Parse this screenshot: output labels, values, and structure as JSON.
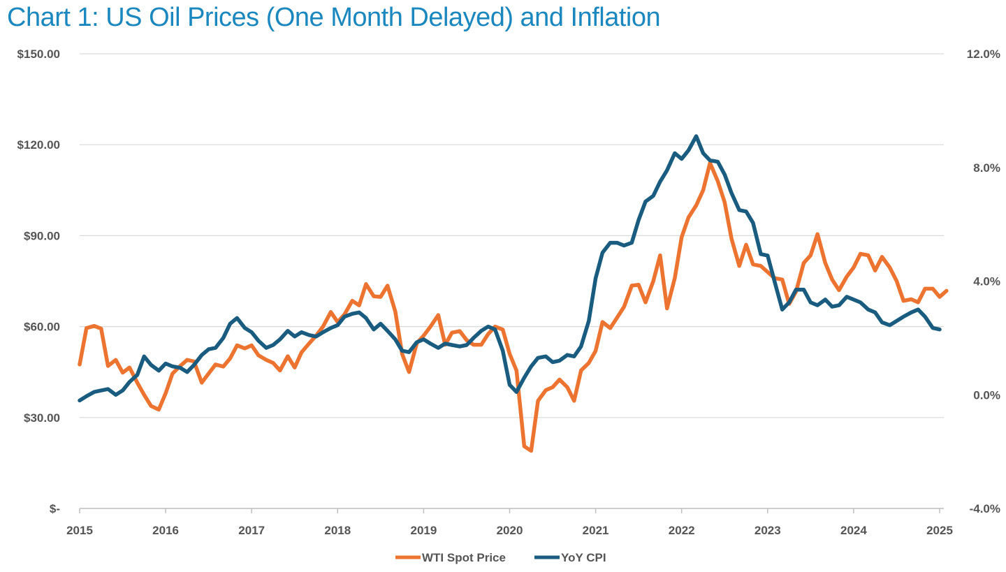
{
  "title": "Chart 1: US Oil Prices (One Month Delayed) and Inflation",
  "chart_data": {
    "type": "line",
    "title": "Chart 1: US Oil Prices (One Month Delayed) and Inflation",
    "xlabel": "",
    "ylabel": "",
    "x_ticks": [
      "2015",
      "2016",
      "2017",
      "2018",
      "2019",
      "2020",
      "2021",
      "2022",
      "2023",
      "2024",
      "2025"
    ],
    "y_left_ticks": [
      "$-",
      "$30.00",
      "$60.00",
      "$90.00",
      "$120.00",
      "$150.00"
    ],
    "y_right_ticks": [
      "-4.0%",
      "0.0%",
      "4.0%",
      "8.0%",
      "12.0%"
    ],
    "ylim_left": [
      0,
      150
    ],
    "ylim_right": [
      -4,
      12
    ],
    "xlim": [
      2015.0,
      2025.0
    ],
    "grid": "horizontal",
    "legend_position": "bottom",
    "colors": {
      "wti": "#ed7430",
      "cpi": "#1a5c80",
      "title": "#1a87bf",
      "grid": "#d9d9d9",
      "axis_text": "#555555"
    },
    "series": [
      {
        "name": "WTI Spot Price",
        "axis": "left",
        "points": [
          [
            2015.0,
            47.5
          ],
          [
            2015.08,
            59.5
          ],
          [
            2015.17,
            60.2
          ],
          [
            2015.25,
            59.3
          ],
          [
            2015.33,
            47.0
          ],
          [
            2015.42,
            49.0
          ],
          [
            2015.5,
            44.8
          ],
          [
            2015.58,
            46.5
          ],
          [
            2015.67,
            41.5
          ],
          [
            2015.75,
            37.5
          ],
          [
            2015.83,
            33.8
          ],
          [
            2015.92,
            32.6
          ],
          [
            2016.0,
            38.0
          ],
          [
            2016.08,
            44.5
          ],
          [
            2016.17,
            47.0
          ],
          [
            2016.25,
            49.0
          ],
          [
            2016.33,
            48.5
          ],
          [
            2016.42,
            41.5
          ],
          [
            2016.5,
            44.5
          ],
          [
            2016.58,
            47.5
          ],
          [
            2016.67,
            46.8
          ],
          [
            2016.75,
            49.5
          ],
          [
            2016.83,
            53.8
          ],
          [
            2016.92,
            52.8
          ],
          [
            2017.0,
            53.8
          ],
          [
            2017.08,
            50.5
          ],
          [
            2017.17,
            49.0
          ],
          [
            2017.25,
            48.0
          ],
          [
            2017.33,
            45.5
          ],
          [
            2017.42,
            50.2
          ],
          [
            2017.5,
            46.5
          ],
          [
            2017.58,
            51.5
          ],
          [
            2017.67,
            54.5
          ],
          [
            2017.75,
            57.0
          ],
          [
            2017.83,
            60.0
          ],
          [
            2017.92,
            64.8
          ],
          [
            2018.0,
            61.5
          ],
          [
            2018.08,
            64.0
          ],
          [
            2018.17,
            68.5
          ],
          [
            2018.25,
            67.0
          ],
          [
            2018.33,
            74.0
          ],
          [
            2018.42,
            70.0
          ],
          [
            2018.5,
            69.8
          ],
          [
            2018.58,
            73.5
          ],
          [
            2018.67,
            65.0
          ],
          [
            2018.75,
            51.0
          ],
          [
            2018.83,
            45.0
          ],
          [
            2018.92,
            54.5
          ],
          [
            2019.0,
            57.0
          ],
          [
            2019.08,
            60.0
          ],
          [
            2019.17,
            63.8
          ],
          [
            2019.25,
            54.0
          ],
          [
            2019.33,
            58.0
          ],
          [
            2019.42,
            58.5
          ],
          [
            2019.5,
            55.5
          ],
          [
            2019.58,
            54.0
          ],
          [
            2019.67,
            54.0
          ],
          [
            2019.75,
            57.5
          ],
          [
            2019.83,
            60.0
          ],
          [
            2019.92,
            59.0
          ],
          [
            2020.0,
            51.0
          ],
          [
            2020.08,
            45.5
          ],
          [
            2020.17,
            20.5
          ],
          [
            2020.25,
            19.0
          ],
          [
            2020.33,
            35.5
          ],
          [
            2020.42,
            39.0
          ],
          [
            2020.5,
            40.0
          ],
          [
            2020.58,
            42.5
          ],
          [
            2020.67,
            40.0
          ],
          [
            2020.75,
            35.5
          ],
          [
            2020.83,
            45.5
          ],
          [
            2020.92,
            48.0
          ],
          [
            2021.0,
            52.0
          ],
          [
            2021.08,
            61.5
          ],
          [
            2021.17,
            59.5
          ],
          [
            2021.25,
            63.0
          ],
          [
            2021.33,
            66.5
          ],
          [
            2021.42,
            73.5
          ],
          [
            2021.5,
            73.8
          ],
          [
            2021.58,
            68.0
          ],
          [
            2021.67,
            75.0
          ],
          [
            2021.75,
            83.5
          ],
          [
            2021.83,
            66.0
          ],
          [
            2021.92,
            76.0
          ],
          [
            2022.0,
            89.5
          ],
          [
            2022.08,
            96.0
          ],
          [
            2022.17,
            100.0
          ],
          [
            2022.25,
            105.0
          ],
          [
            2022.33,
            114.0
          ],
          [
            2022.42,
            108.0
          ],
          [
            2022.5,
            101.0
          ],
          [
            2022.58,
            89.0
          ],
          [
            2022.67,
            80.0
          ],
          [
            2022.75,
            87.0
          ],
          [
            2022.83,
            80.5
          ],
          [
            2022.92,
            80.0
          ],
          [
            2023.0,
            78.0
          ],
          [
            2023.08,
            76.0
          ],
          [
            2023.17,
            75.5
          ],
          [
            2023.25,
            67.5
          ],
          [
            2023.33,
            71.5
          ],
          [
            2023.42,
            81.0
          ],
          [
            2023.5,
            83.5
          ],
          [
            2023.58,
            90.5
          ],
          [
            2023.67,
            81.0
          ],
          [
            2023.75,
            75.5
          ],
          [
            2023.83,
            72.0
          ],
          [
            2023.92,
            76.5
          ],
          [
            2024.0,
            79.5
          ],
          [
            2024.08,
            84.0
          ],
          [
            2024.17,
            83.5
          ],
          [
            2024.25,
            78.5
          ],
          [
            2024.33,
            83.0
          ],
          [
            2024.42,
            79.5
          ],
          [
            2024.5,
            75.0
          ],
          [
            2024.58,
            68.5
          ],
          [
            2024.67,
            69.0
          ],
          [
            2024.75,
            68.0
          ],
          [
            2024.83,
            72.5
          ],
          [
            2024.92,
            72.5
          ],
          [
            2025.0,
            69.8
          ],
          [
            2025.08,
            71.8
          ]
        ]
      },
      {
        "name": "YoY CPI",
        "axis": "right",
        "points": [
          [
            2015.0,
            -0.2
          ],
          [
            2015.08,
            -0.05
          ],
          [
            2015.17,
            0.1
          ],
          [
            2015.25,
            0.15
          ],
          [
            2015.33,
            0.2
          ],
          [
            2015.42,
            0.0
          ],
          [
            2015.5,
            0.15
          ],
          [
            2015.58,
            0.45
          ],
          [
            2015.67,
            0.7
          ],
          [
            2015.75,
            1.35
          ],
          [
            2015.83,
            1.05
          ],
          [
            2015.92,
            0.85
          ],
          [
            2016.0,
            1.1
          ],
          [
            2016.08,
            1.0
          ],
          [
            2016.17,
            0.95
          ],
          [
            2016.25,
            0.8
          ],
          [
            2016.33,
            1.05
          ],
          [
            2016.42,
            1.4
          ],
          [
            2016.5,
            1.6
          ],
          [
            2016.58,
            1.65
          ],
          [
            2016.67,
            2.0
          ],
          [
            2016.75,
            2.5
          ],
          [
            2016.83,
            2.7
          ],
          [
            2016.92,
            2.35
          ],
          [
            2017.0,
            2.2
          ],
          [
            2017.08,
            1.9
          ],
          [
            2017.17,
            1.65
          ],
          [
            2017.25,
            1.75
          ],
          [
            2017.33,
            1.95
          ],
          [
            2017.42,
            2.25
          ],
          [
            2017.5,
            2.05
          ],
          [
            2017.58,
            2.2
          ],
          [
            2017.67,
            2.1
          ],
          [
            2017.75,
            2.05
          ],
          [
            2017.83,
            2.2
          ],
          [
            2017.92,
            2.35
          ],
          [
            2018.0,
            2.45
          ],
          [
            2018.08,
            2.75
          ],
          [
            2018.17,
            2.85
          ],
          [
            2018.25,
            2.9
          ],
          [
            2018.33,
            2.7
          ],
          [
            2018.42,
            2.3
          ],
          [
            2018.5,
            2.5
          ],
          [
            2018.58,
            2.25
          ],
          [
            2018.67,
            1.95
          ],
          [
            2018.75,
            1.55
          ],
          [
            2018.83,
            1.5
          ],
          [
            2018.92,
            1.85
          ],
          [
            2019.0,
            1.95
          ],
          [
            2019.08,
            1.8
          ],
          [
            2019.17,
            1.65
          ],
          [
            2019.25,
            1.8
          ],
          [
            2019.33,
            1.75
          ],
          [
            2019.42,
            1.7
          ],
          [
            2019.5,
            1.75
          ],
          [
            2019.58,
            2.0
          ],
          [
            2019.67,
            2.25
          ],
          [
            2019.75,
            2.4
          ],
          [
            2019.83,
            2.3
          ],
          [
            2019.92,
            1.55
          ],
          [
            2020.0,
            0.35
          ],
          [
            2020.08,
            0.1
          ],
          [
            2020.17,
            0.6
          ],
          [
            2020.25,
            1.0
          ],
          [
            2020.33,
            1.3
          ],
          [
            2020.42,
            1.35
          ],
          [
            2020.5,
            1.15
          ],
          [
            2020.58,
            1.2
          ],
          [
            2020.67,
            1.4
          ],
          [
            2020.75,
            1.35
          ],
          [
            2020.83,
            1.7
          ],
          [
            2020.92,
            2.6
          ],
          [
            2021.0,
            4.1
          ],
          [
            2021.08,
            5.0
          ],
          [
            2021.17,
            5.35
          ],
          [
            2021.25,
            5.35
          ],
          [
            2021.33,
            5.25
          ],
          [
            2021.42,
            5.35
          ],
          [
            2021.5,
            6.15
          ],
          [
            2021.58,
            6.8
          ],
          [
            2021.67,
            7.0
          ],
          [
            2021.75,
            7.5
          ],
          [
            2021.83,
            7.9
          ],
          [
            2021.92,
            8.5
          ],
          [
            2022.0,
            8.3
          ],
          [
            2022.08,
            8.6
          ],
          [
            2022.17,
            9.1
          ],
          [
            2022.25,
            8.5
          ],
          [
            2022.33,
            8.25
          ],
          [
            2022.42,
            8.2
          ],
          [
            2022.5,
            7.75
          ],
          [
            2022.58,
            7.1
          ],
          [
            2022.67,
            6.5
          ],
          [
            2022.75,
            6.45
          ],
          [
            2022.83,
            6.05
          ],
          [
            2022.92,
            4.95
          ],
          [
            2023.0,
            4.9
          ],
          [
            2023.08,
            4.0
          ],
          [
            2023.17,
            3.0
          ],
          [
            2023.25,
            3.25
          ],
          [
            2023.33,
            3.7
          ],
          [
            2023.42,
            3.7
          ],
          [
            2023.5,
            3.25
          ],
          [
            2023.58,
            3.15
          ],
          [
            2023.67,
            3.35
          ],
          [
            2023.75,
            3.1
          ],
          [
            2023.83,
            3.15
          ],
          [
            2023.92,
            3.45
          ],
          [
            2024.0,
            3.35
          ],
          [
            2024.08,
            3.25
          ],
          [
            2024.17,
            3.0
          ],
          [
            2024.25,
            2.9
          ],
          [
            2024.33,
            2.55
          ],
          [
            2024.42,
            2.45
          ],
          [
            2024.5,
            2.6
          ],
          [
            2024.58,
            2.75
          ],
          [
            2024.67,
            2.9
          ],
          [
            2024.75,
            3.0
          ],
          [
            2024.83,
            2.75
          ],
          [
            2024.92,
            2.35
          ],
          [
            2025.0,
            2.3
          ]
        ]
      }
    ]
  }
}
